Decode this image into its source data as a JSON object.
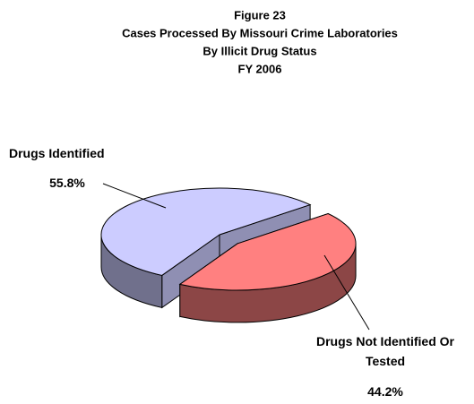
{
  "chart_data": {
    "type": "pie",
    "title": [
      "Figure 23",
      "Cases Processed By Missouri Crime Laboratories",
      "By Illicit Drug Status",
      "FY 2006"
    ],
    "categories": [
      "Drugs Identified",
      "Drugs Not Identified Or Tested"
    ],
    "values": [
      55.8,
      44.2
    ],
    "value_labels": [
      "55.8%",
      "44.2%"
    ],
    "colors": [
      "#ccccff",
      "#ff8080"
    ]
  }
}
